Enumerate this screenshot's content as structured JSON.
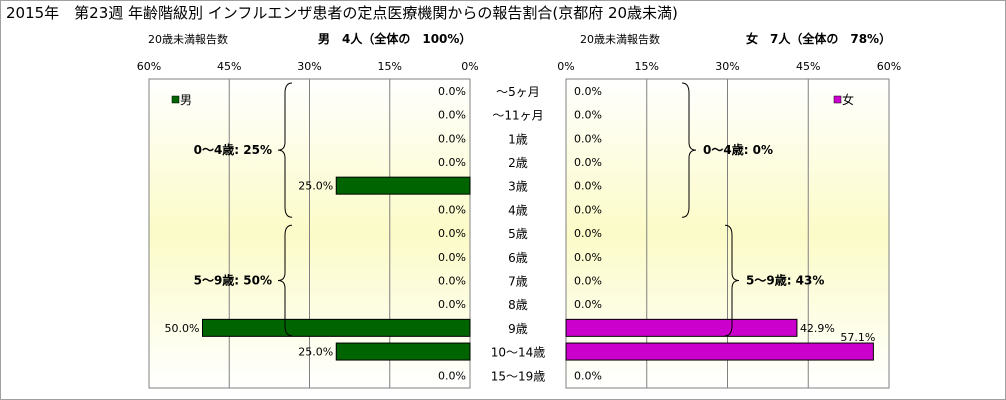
{
  "header": {
    "title": "2015年　第23週 年齢階級別 インフルエンザ患者の定点医療機関からの報告割合(京都府 20歳未満)"
  },
  "chart_data": [
    {
      "type": "bar",
      "orientation": "horizontal",
      "direction": "right-to-left",
      "subtitle_left": "20歳未満報告数",
      "subtitle": "男　4人（全体の　100%）",
      "legend": "男",
      "legend_position": "top-left",
      "color": "#006400",
      "xlim": [
        0,
        60
      ],
      "ticks": [
        "60%",
        "45%",
        "30%",
        "15%",
        "0%"
      ],
      "tick_values": [
        60,
        45,
        30,
        15,
        0
      ],
      "categories": [
        "～5ヶ月",
        "～11ヶ月",
        "1歳",
        "2歳",
        "3歳",
        "4歳",
        "5歳",
        "6歳",
        "7歳",
        "8歳",
        "9歳",
        "10～14歳",
        "15～19歳"
      ],
      "values": [
        0,
        0,
        0,
        0,
        25,
        0,
        0,
        0,
        0,
        0,
        50,
        25,
        0
      ],
      "value_labels": [
        "0.0%",
        "0.0%",
        "0.0%",
        "0.0%",
        "25.0%",
        "0.0%",
        "0.0%",
        "0.0%",
        "0.0%",
        "0.0%",
        "50.0%",
        "25.0%",
        "0.0%"
      ],
      "annotations": [
        {
          "text": "0～4歳: 25%",
          "from": 0,
          "to": 5
        },
        {
          "text": "5～9歳: 50%",
          "from": 6,
          "to": 10
        }
      ]
    },
    {
      "type": "bar",
      "orientation": "horizontal",
      "direction": "left-to-right",
      "subtitle_left": "20歳未満報告数",
      "subtitle": "女　7人（全体の　78%）",
      "legend": "女",
      "legend_position": "top-right",
      "color": "#cc00cc",
      "xlim": [
        0,
        60
      ],
      "ticks": [
        "0%",
        "15%",
        "30%",
        "45%",
        "60%"
      ],
      "tick_values": [
        0,
        15,
        30,
        45,
        60
      ],
      "categories": [
        "～5ヶ月",
        "～11ヶ月",
        "1歳",
        "2歳",
        "3歳",
        "4歳",
        "5歳",
        "6歳",
        "7歳",
        "8歳",
        "9歳",
        "10～14歳",
        "15～19歳"
      ],
      "values": [
        0,
        0,
        0,
        0,
        0,
        0,
        0,
        0,
        0,
        0,
        42.9,
        57.1,
        0
      ],
      "value_labels": [
        "0.0%",
        "0.0%",
        "0.0%",
        "0.0%",
        "0.0%",
        "0.0%",
        "0.0%",
        "0.0%",
        "0.0%",
        "0.0%",
        "42.9%",
        "57.1%",
        "0.0%"
      ],
      "annotations": [
        {
          "text": "0～4歳: 0%",
          "from": 0,
          "to": 5
        },
        {
          "text": "5～9歳: 43%",
          "from": 6,
          "to": 10
        }
      ]
    }
  ]
}
